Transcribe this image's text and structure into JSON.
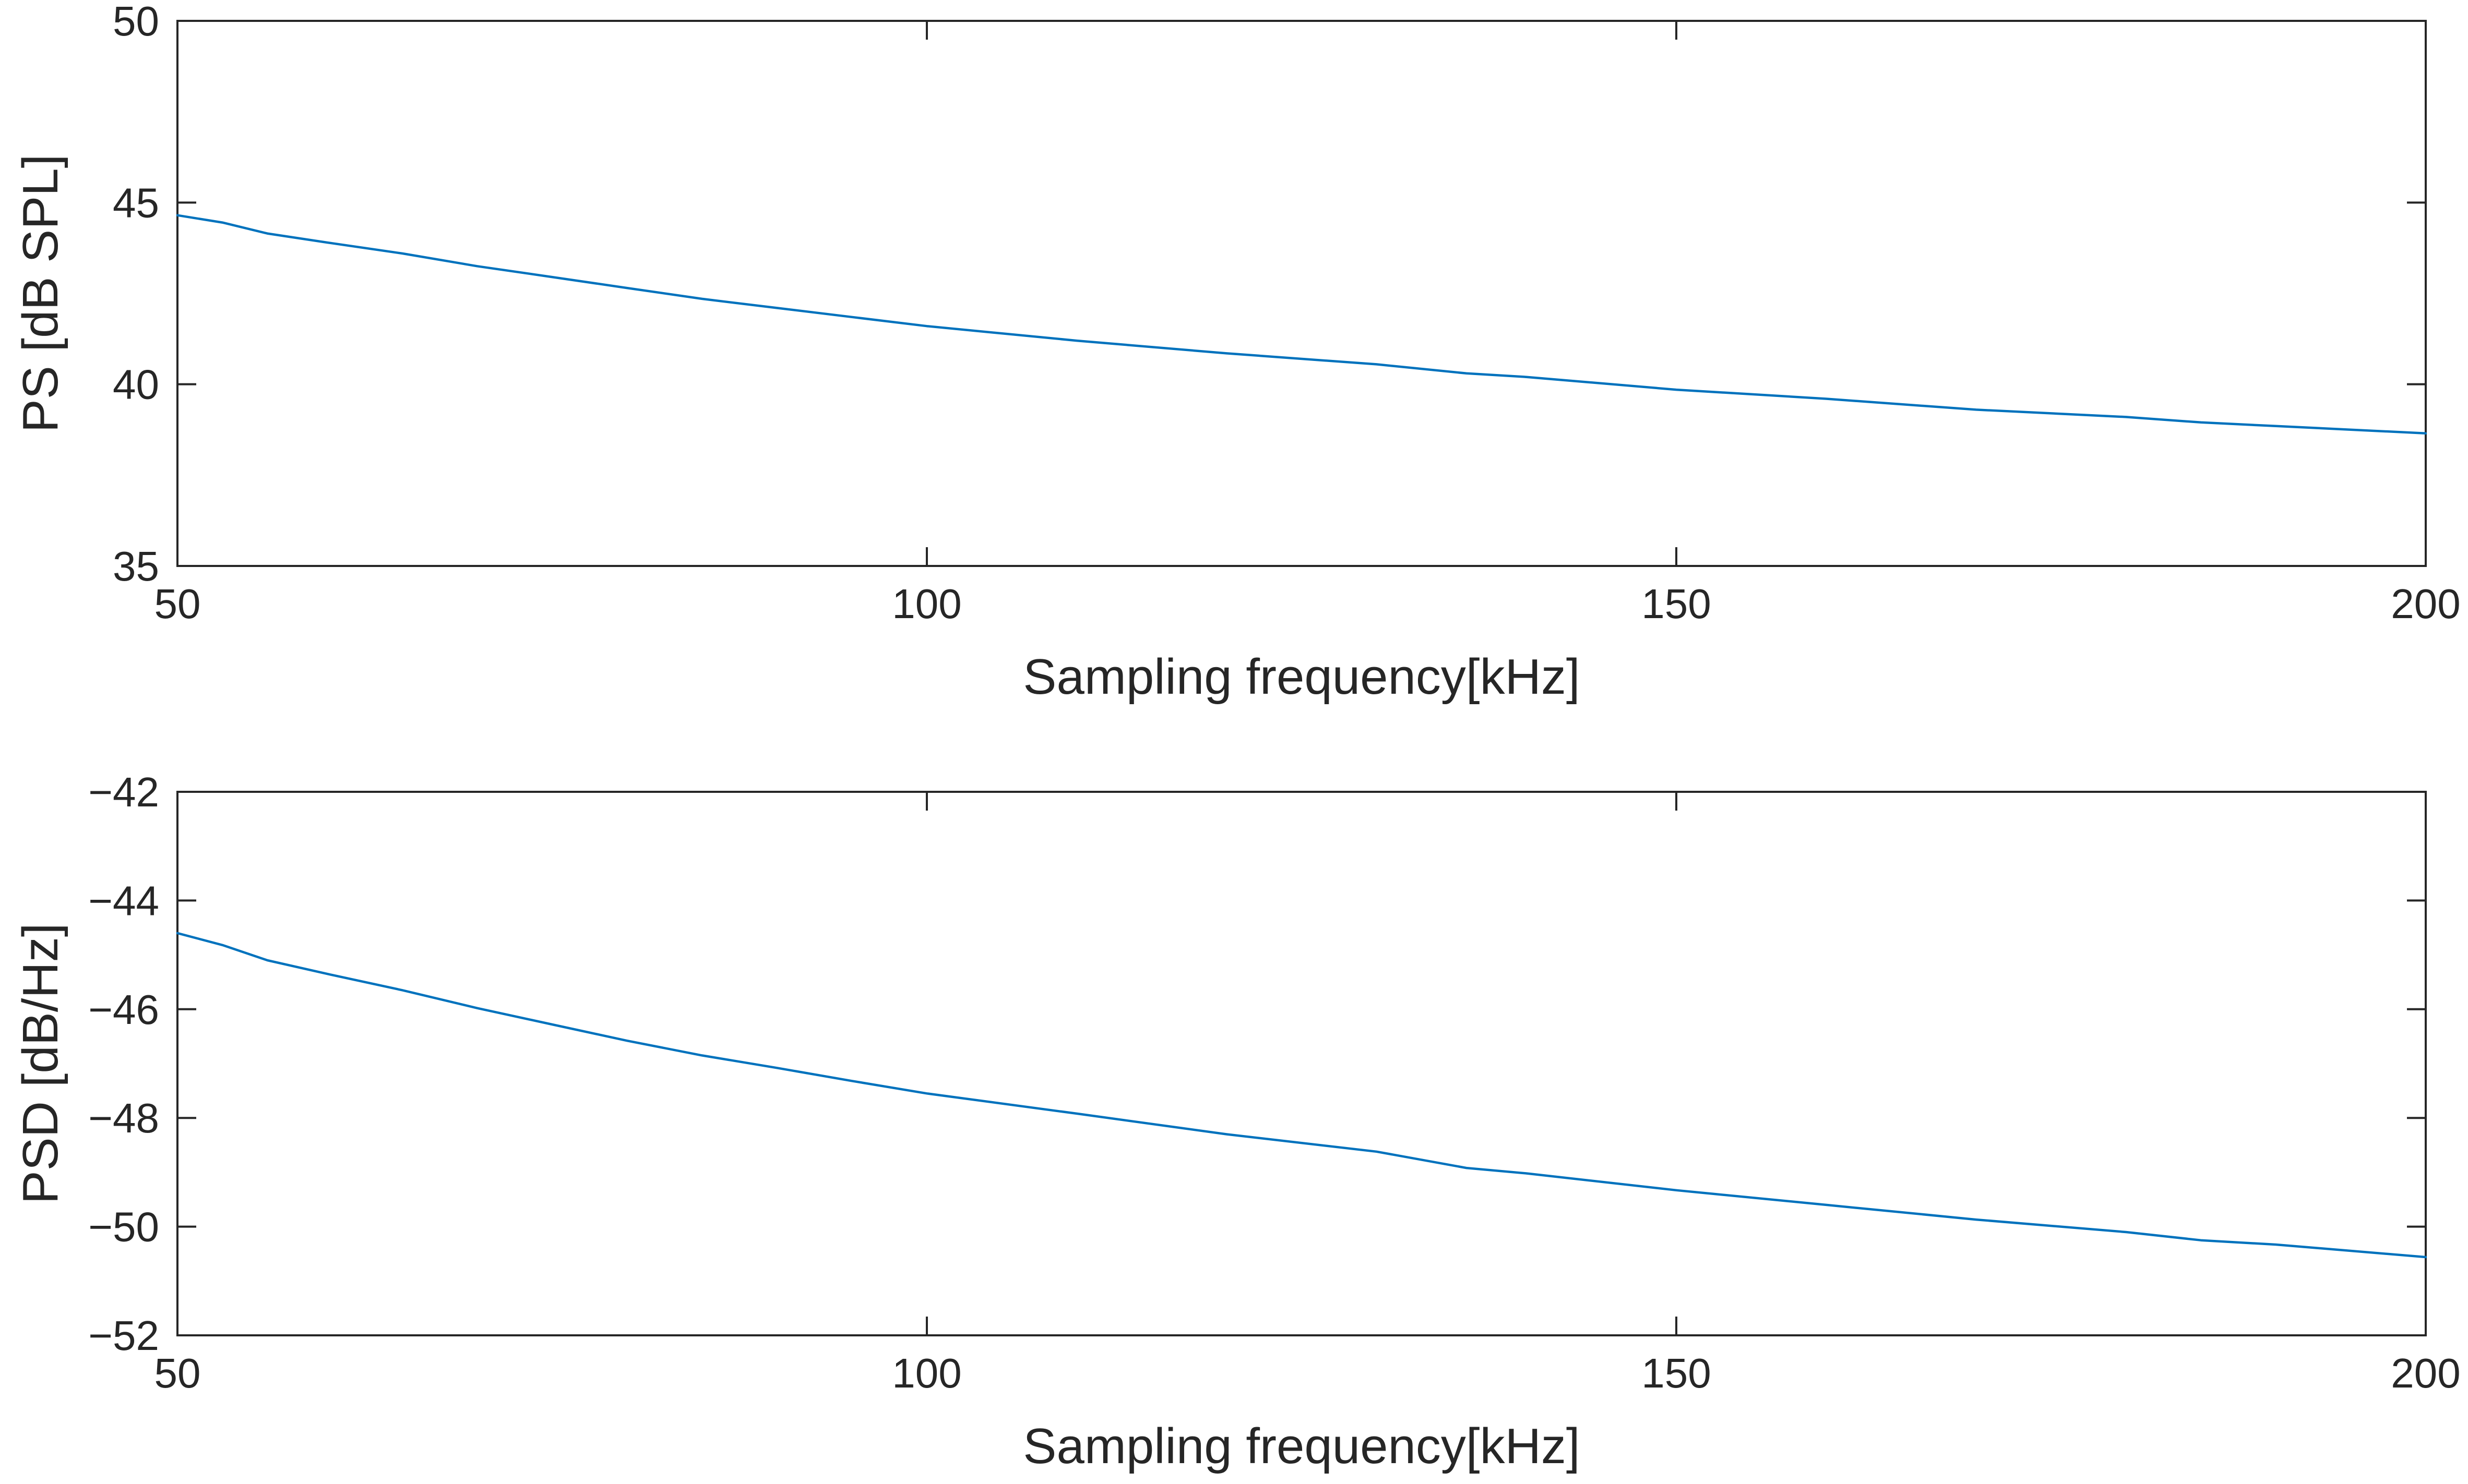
{
  "chart_data": [
    {
      "type": "line",
      "xlabel": "Sampling frequency[kHz]",
      "ylabel": "PS [dB SPL]",
      "xlim": [
        50,
        200
      ],
      "ylim": [
        35,
        50
      ],
      "xticks": [
        50,
        100,
        150,
        200
      ],
      "yticks": [
        35,
        40,
        45,
        50
      ],
      "grid": false,
      "series": [
        {
          "color": "#0072BD",
          "x": [
            50,
            53,
            56,
            60,
            65,
            70,
            75,
            80,
            85,
            90,
            95,
            100,
            110,
            120,
            130,
            136,
            140,
            150,
            160,
            170,
            180,
            185,
            190,
            200
          ],
          "y": [
            44.65,
            44.45,
            44.15,
            43.9,
            43.6,
            43.25,
            42.95,
            42.65,
            42.35,
            42.1,
            41.85,
            41.6,
            41.2,
            40.85,
            40.55,
            40.3,
            40.2,
            39.85,
            39.6,
            39.3,
            39.1,
            38.95,
            38.85,
            38.65
          ]
        }
      ]
    },
    {
      "type": "line",
      "xlabel": "Sampling frequency[kHz]",
      "ylabel": "PSD [dB/Hz]",
      "xlim": [
        50,
        200
      ],
      "ylim": [
        -52,
        -42
      ],
      "xticks": [
        50,
        100,
        150,
        200
      ],
      "yticks": [
        -52,
        -50,
        -48,
        -46,
        -44,
        -42
      ],
      "grid": false,
      "series": [
        {
          "color": "#0072BD",
          "x": [
            50,
            53,
            56,
            60,
            65,
            70,
            75,
            80,
            85,
            90,
            95,
            100,
            110,
            120,
            130,
            136,
            140,
            150,
            160,
            170,
            180,
            185,
            190,
            200
          ],
          "y": [
            -44.6,
            -44.82,
            -45.1,
            -45.35,
            -45.65,
            -45.98,
            -46.28,
            -46.58,
            -46.85,
            -47.08,
            -47.32,
            -47.55,
            -47.92,
            -48.3,
            -48.62,
            -48.92,
            -49.02,
            -49.33,
            -49.6,
            -49.87,
            -50.1,
            -50.25,
            -50.33,
            -50.56
          ]
        }
      ]
    }
  ]
}
